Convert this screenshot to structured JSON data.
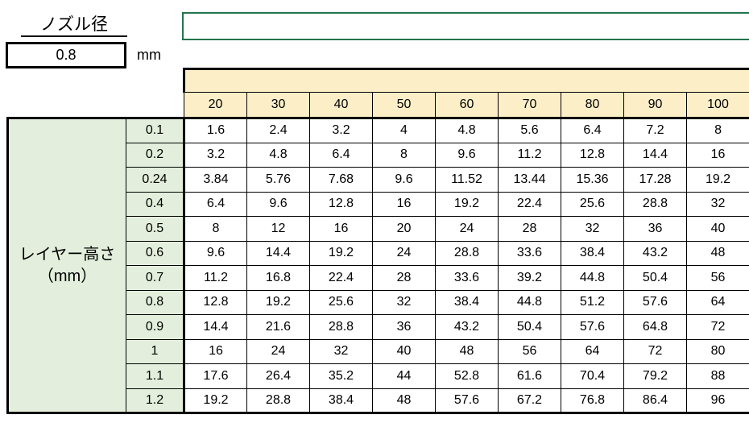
{
  "nozzle": {
    "label": "ノズル径",
    "value": "0.8",
    "unit": "mm"
  },
  "entry_box": {
    "value": ""
  },
  "table": {
    "corner_label": [
      "レイヤー高さ",
      "（mm）"
    ],
    "col_headers": [
      "20",
      "30",
      "40",
      "50",
      "60",
      "70",
      "80",
      "90",
      "100"
    ],
    "row_headers": [
      "0.1",
      "0.2",
      "0.24",
      "0.4",
      "0.5",
      "0.6",
      "0.7",
      "0.8",
      "0.9",
      "1",
      "1.1",
      "1.2"
    ],
    "rows": [
      [
        "1.6",
        "2.4",
        "3.2",
        "4",
        "4.8",
        "5.6",
        "6.4",
        "7.2",
        "8"
      ],
      [
        "3.2",
        "4.8",
        "6.4",
        "8",
        "9.6",
        "11.2",
        "12.8",
        "14.4",
        "16"
      ],
      [
        "3.84",
        "5.76",
        "7.68",
        "9.6",
        "11.52",
        "13.44",
        "15.36",
        "17.28",
        "19.2"
      ],
      [
        "6.4",
        "9.6",
        "12.8",
        "16",
        "19.2",
        "22.4",
        "25.6",
        "28.8",
        "32"
      ],
      [
        "8",
        "12",
        "16",
        "20",
        "24",
        "28",
        "32",
        "36",
        "40"
      ],
      [
        "9.6",
        "14.4",
        "19.2",
        "24",
        "28.8",
        "33.6",
        "38.4",
        "43.2",
        "48"
      ],
      [
        "11.2",
        "16.8",
        "22.4",
        "28",
        "33.6",
        "39.2",
        "44.8",
        "50.4",
        "56"
      ],
      [
        "12.8",
        "19.2",
        "25.6",
        "32",
        "38.4",
        "44.8",
        "51.2",
        "57.6",
        "64"
      ],
      [
        "14.4",
        "21.6",
        "28.8",
        "36",
        "43.2",
        "50.4",
        "57.6",
        "64.8",
        "72"
      ],
      [
        "16",
        "24",
        "32",
        "40",
        "48",
        "56",
        "64",
        "72",
        "80"
      ],
      [
        "17.6",
        "26.4",
        "35.2",
        "44",
        "52.8",
        "61.6",
        "70.4",
        "79.2",
        "88"
      ],
      [
        "19.2",
        "28.8",
        "38.4",
        "48",
        "57.6",
        "67.2",
        "76.8",
        "86.4",
        "96"
      ]
    ]
  },
  "colors": {
    "header_bg": "#FCEFC8",
    "row_label_bg": "#E3EFDC",
    "entry_box_border": "#24744C",
    "grid_border": "#000000"
  }
}
